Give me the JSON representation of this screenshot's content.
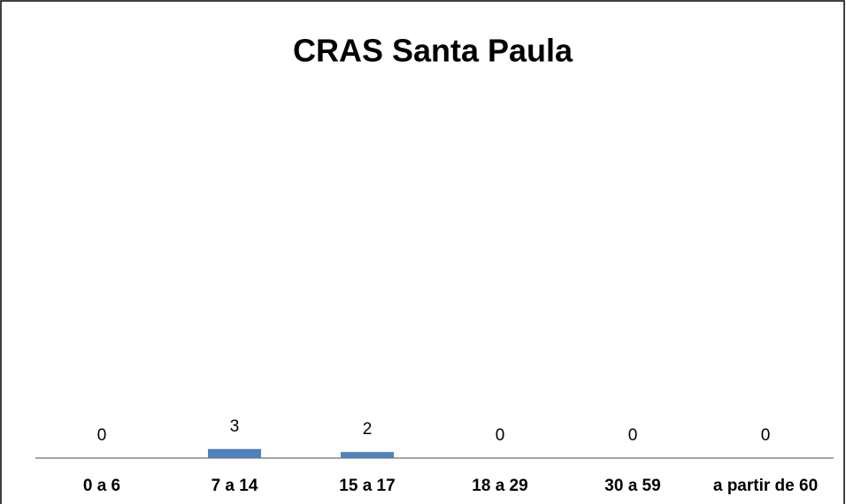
{
  "chart_data": {
    "type": "bar",
    "title": "CRAS Santa Paula",
    "categories": [
      "0 a 6",
      "7 a 14",
      "15 a 17",
      "18 a 29",
      "30 a 59",
      "a partir de 60"
    ],
    "values": [
      0,
      3,
      2,
      0,
      0,
      0
    ],
    "color": "#4f81bd"
  }
}
